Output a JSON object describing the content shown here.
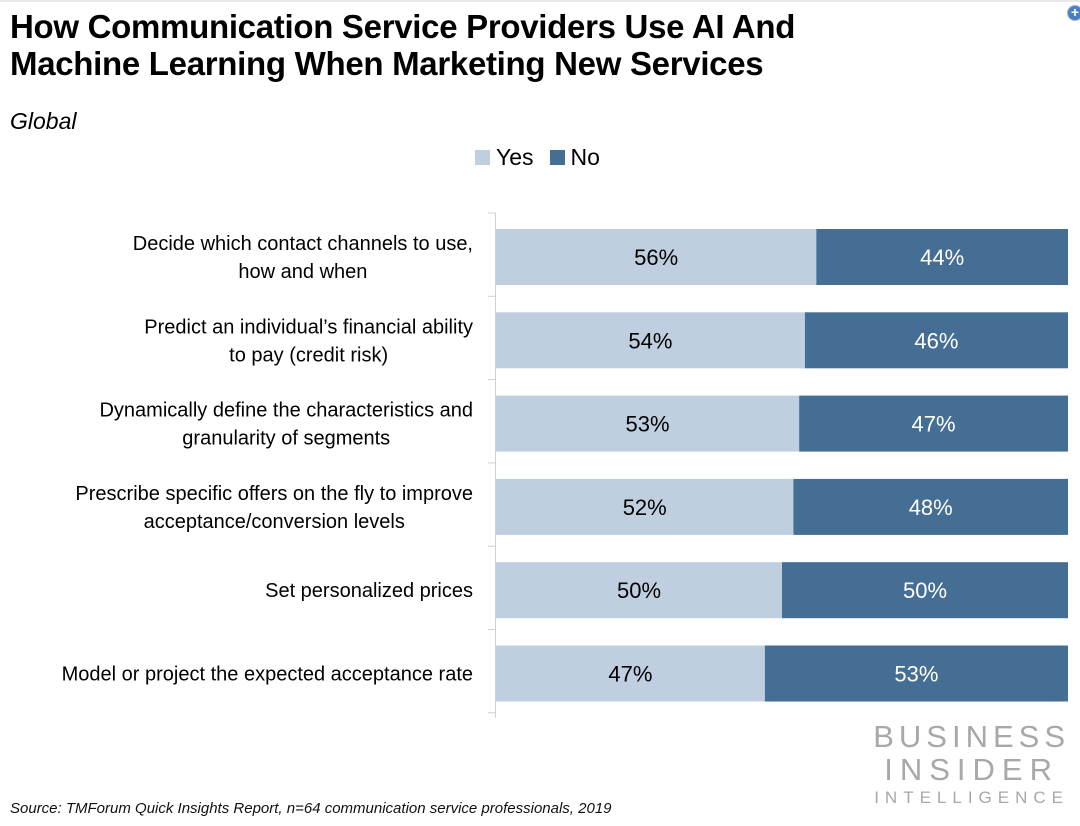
{
  "header": {
    "title_line1": "How Communication Service Providers Use AI And",
    "title_line2": "Machine Learning When Marketing New Services",
    "subtitle": "Global"
  },
  "legend": {
    "items": [
      {
        "label": "Yes",
        "color": "#bfcfe0"
      },
      {
        "label": "No",
        "color": "#456e94"
      }
    ]
  },
  "source": "Source: TMForum Quick Insights Report, n=64 communication service professionals, 2019",
  "logo": {
    "line1": "BUSINESS",
    "line2": "INSIDER",
    "line3": "INTELLIGENCE"
  },
  "chart_data": {
    "type": "bar",
    "orientation": "horizontal",
    "stacked": true,
    "title": "How Communication Service Providers Use AI And Machine Learning When Marketing New Services",
    "subtitle": "Global",
    "xlabel": "",
    "ylabel": "",
    "xlim": [
      0,
      100
    ],
    "grid": false,
    "legend_position": "top-center",
    "categories": [
      [
        "Decide which contact channels to use,",
        "how and when"
      ],
      [
        "Predict an individual’s financial ability",
        "to pay (credit risk)"
      ],
      [
        "Dynamically define the characteristics and",
        "granularity of segments"
      ],
      [
        "Prescribe specific offers on the fly to improve",
        "acceptance/conversion levels"
      ],
      [
        "Set personalized prices"
      ],
      [
        "Model or project the expected acceptance rate"
      ]
    ],
    "series": [
      {
        "name": "Yes",
        "color": "#bfcfe0",
        "label_color": "#000000",
        "values": [
          56,
          54,
          53,
          52,
          50,
          47
        ]
      },
      {
        "name": "No",
        "color": "#456e94",
        "label_color": "#ffffff",
        "values": [
          44,
          46,
          47,
          48,
          50,
          53
        ]
      }
    ],
    "value_suffix": "%"
  }
}
